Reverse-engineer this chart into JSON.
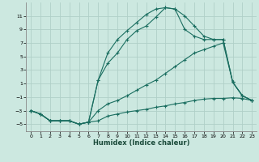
{
  "xlabel": "Humidex (Indice chaleur)",
  "background_color": "#cce8e0",
  "grid_color": "#b0d0c8",
  "line_color": "#1a6e60",
  "xlim": [
    -0.5,
    23.5
  ],
  "ylim": [
    -6,
    13
  ],
  "yticks": [
    -5,
    -3,
    -1,
    1,
    3,
    5,
    7,
    9,
    11
  ],
  "xticks": [
    0,
    1,
    2,
    3,
    4,
    5,
    6,
    7,
    8,
    9,
    10,
    11,
    12,
    13,
    14,
    15,
    16,
    17,
    18,
    19,
    20,
    21,
    22,
    23
  ],
  "series": [
    {
      "x": [
        0,
        1,
        2,
        3,
        4,
        5,
        6,
        7,
        8,
        9,
        10,
        11,
        12,
        13,
        14,
        15,
        16,
        17,
        18,
        19,
        20,
        21,
        22,
        23
      ],
      "y": [
        -3,
        -3.5,
        -4.5,
        -4.5,
        -4.5,
        -5,
        -4.7,
        -4.5,
        -3.8,
        -3.5,
        -3.2,
        -3.0,
        -2.8,
        -2.5,
        -2.3,
        -2.0,
        -1.8,
        -1.5,
        -1.3,
        -1.2,
        -1.2,
        -1.1,
        -1.2,
        -1.5
      ]
    },
    {
      "x": [
        0,
        1,
        2,
        3,
        4,
        5,
        6,
        7,
        8,
        9,
        10,
        11,
        12,
        13,
        14,
        15,
        16,
        17,
        18,
        19,
        20,
        21,
        22,
        23
      ],
      "y": [
        -3,
        -3.5,
        -4.5,
        -4.5,
        -4.5,
        -5,
        -4.7,
        -3.0,
        -2.0,
        -1.5,
        -0.8,
        0,
        0.8,
        1.5,
        2.5,
        3.5,
        4.5,
        5.5,
        6.0,
        6.5,
        7.0,
        1.2,
        -0.8,
        -1.5
      ]
    },
    {
      "x": [
        0,
        1,
        2,
        3,
        4,
        5,
        6,
        7,
        8,
        9,
        10,
        11,
        12,
        13,
        14,
        15,
        16,
        17,
        18,
        19,
        20,
        21,
        22,
        23
      ],
      "y": [
        -3,
        -3.5,
        -4.5,
        -4.5,
        -4.5,
        -5,
        -4.7,
        1.5,
        5.5,
        7.5,
        8.8,
        10.0,
        11.2,
        12.0,
        12.2,
        12.0,
        11.0,
        9.5,
        8.0,
        7.5,
        7.5,
        1.2,
        -0.8,
        -1.5
      ]
    },
    {
      "x": [
        0,
        1,
        2,
        3,
        4,
        5,
        6,
        7,
        8,
        9,
        10,
        11,
        12,
        13,
        14,
        15,
        16,
        17,
        18,
        19,
        20,
        21,
        22,
        23
      ],
      "y": [
        -3,
        -3.5,
        -4.5,
        -4.5,
        -4.5,
        -5,
        -4.7,
        1.5,
        4.0,
        5.5,
        7.5,
        8.8,
        9.5,
        10.8,
        12.2,
        12.0,
        9.0,
        8.0,
        7.5,
        7.5,
        7.5,
        1.2,
        -0.8,
        -1.5
      ]
    }
  ]
}
